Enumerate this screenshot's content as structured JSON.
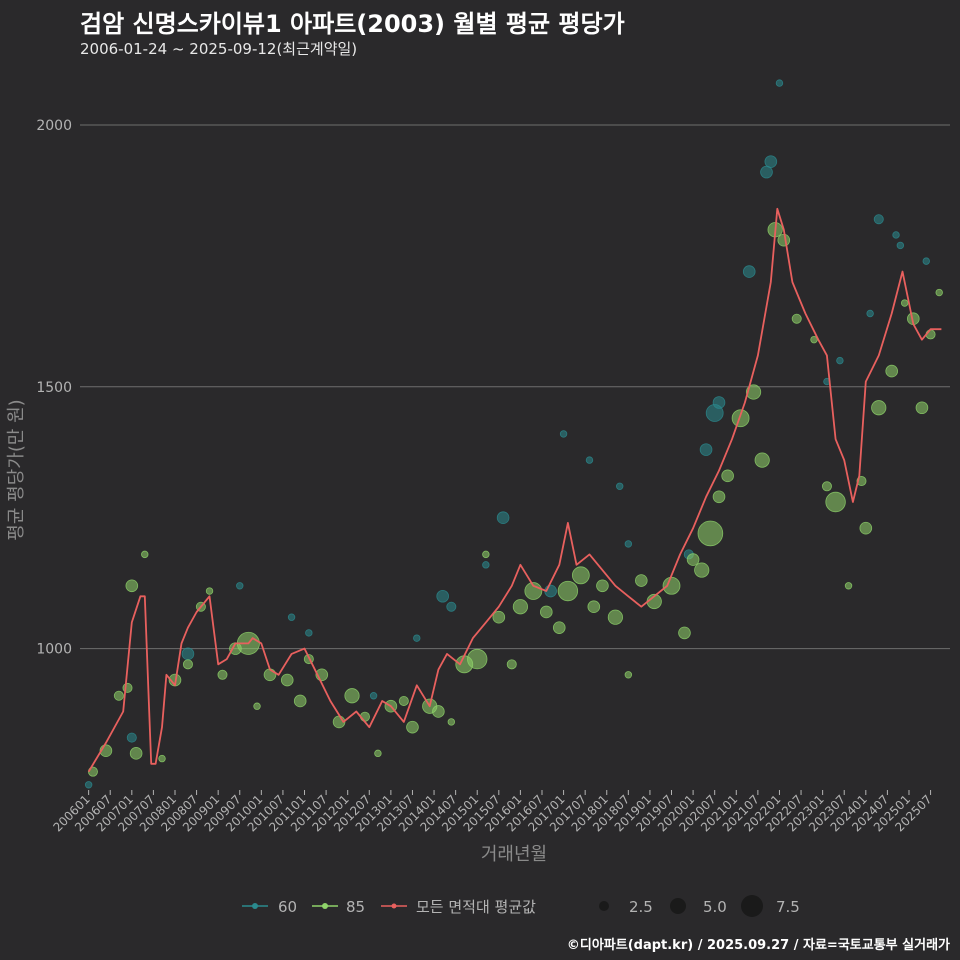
{
  "header": {
    "title": "검암 신명스카이뷰1 아파트(2003) 월별 평균 평당가",
    "subtitle": "2006-01-24 ~ 2025-09-12(최근계약일)"
  },
  "footer": {
    "credit": "©디아파트(dapt.kr) / 2025.09.27 / 자료=국토교통부 실거래가"
  },
  "colors": {
    "background": "#2a292b",
    "grid": "#6e6e6e",
    "series_60": "#2a8a8e",
    "series_85": "#8fd36a",
    "avg_line": "#e8605e"
  },
  "chart_data": {
    "type": "line",
    "title": "검암 신명스카이뷰1 아파트(2003) 월별 평균 평당가",
    "xlabel": "거래년월",
    "ylabel": "평균 평당가(만 원)",
    "ylim": [
      730,
      2105
    ],
    "yticks": [
      1000,
      1500,
      2000
    ],
    "xticks": [
      "200601",
      "200607",
      "200701",
      "200707",
      "200801",
      "200807",
      "200901",
      "200907",
      "201001",
      "201007",
      "201101",
      "201107",
      "201201",
      "201207",
      "201301",
      "201307",
      "201401",
      "201407",
      "201501",
      "201507",
      "201601",
      "201607",
      "201701",
      "201707",
      "201801",
      "201807",
      "201901",
      "201907",
      "202001",
      "202007",
      "202101",
      "202107",
      "202201",
      "202207",
      "202301",
      "202307",
      "202401",
      "202407",
      "202501",
      "202507"
    ],
    "legend": {
      "series": [
        {
          "key": "60",
          "label": "60"
        },
        {
          "key": "85",
          "label": "85"
        },
        {
          "key": "avg",
          "label": "모든 면적대 평균값"
        }
      ],
      "sizes": [
        "2.5",
        "5.0",
        "7.5"
      ]
    },
    "series": [
      {
        "name": "모든 면적대 평균값",
        "style": "line",
        "x": [
          2006.0,
          2006.4,
          2006.8,
          2007.0,
          2007.2,
          2007.3,
          2007.45,
          2007.55,
          2007.7,
          2007.8,
          2008.0,
          2008.15,
          2008.3,
          2008.5,
          2008.8,
          2009.0,
          2009.2,
          2009.4,
          2009.7,
          2009.8,
          2010.0,
          2010.2,
          2010.4,
          2010.7,
          2011.0,
          2011.3,
          2011.6,
          2011.9,
          2012.2,
          2012.5,
          2012.8,
          2013.0,
          2013.3,
          2013.6,
          2013.9,
          2014.1,
          2014.3,
          2014.6,
          2014.9,
          2015.2,
          2015.5,
          2015.8,
          2016.0,
          2016.3,
          2016.6,
          2016.9,
          2017.1,
          2017.3,
          2017.6,
          2017.9,
          2018.2,
          2018.5,
          2018.8,
          2019.1,
          2019.4,
          2019.7,
          2020.0,
          2020.3,
          2020.6,
          2020.9,
          2021.2,
          2021.5,
          2021.8,
          2021.95,
          2022.1,
          2022.3,
          2022.6,
          2022.9,
          2023.1,
          2023.3,
          2023.5,
          2023.7,
          2023.85,
          2024.0,
          2024.3,
          2024.6,
          2024.85,
          2025.1,
          2025.3,
          2025.5,
          2025.75
        ],
        "values": [
          765,
          820,
          880,
          1050,
          1100,
          1100,
          780,
          780,
          850,
          950,
          930,
          1010,
          1040,
          1070,
          1100,
          970,
          980,
          1010,
          1010,
          1020,
          1010,
          960,
          950,
          990,
          1000,
          950,
          900,
          860,
          880,
          850,
          900,
          890,
          860,
          930,
          890,
          960,
          990,
          970,
          1020,
          1050,
          1080,
          1120,
          1160,
          1120,
          1110,
          1160,
          1240,
          1160,
          1180,
          1150,
          1120,
          1100,
          1080,
          1100,
          1120,
          1180,
          1230,
          1290,
          1340,
          1400,
          1470,
          1560,
          1700,
          1840,
          1800,
          1700,
          1640,
          1590,
          1560,
          1400,
          1360,
          1280,
          1330,
          1510,
          1560,
          1640,
          1720,
          1620,
          1590,
          1610,
          1610
        ]
      },
      {
        "name": "85",
        "style": "points",
        "points": [
          [
            2006.1,
            765,
            2
          ],
          [
            2006.4,
            805,
            3
          ],
          [
            2006.7,
            910,
            2
          ],
          [
            2006.9,
            925,
            2
          ],
          [
            2007.0,
            1120,
            3
          ],
          [
            2007.1,
            800,
            3
          ],
          [
            2007.3,
            1180,
            1
          ],
          [
            2007.7,
            790,
            1
          ],
          [
            2008.0,
            940,
            3
          ],
          [
            2008.3,
            970,
            2
          ],
          [
            2008.6,
            1080,
            2
          ],
          [
            2008.8,
            1110,
            1
          ],
          [
            2009.1,
            950,
            2
          ],
          [
            2009.4,
            1000,
            3
          ],
          [
            2009.7,
            1010,
            7
          ],
          [
            2009.9,
            890,
            1
          ],
          [
            2010.2,
            950,
            3
          ],
          [
            2010.6,
            940,
            3
          ],
          [
            2010.9,
            900,
            3
          ],
          [
            2011.1,
            980,
            2
          ],
          [
            2011.4,
            950,
            3
          ],
          [
            2011.8,
            860,
            3
          ],
          [
            2012.1,
            910,
            4
          ],
          [
            2012.4,
            870,
            2
          ],
          [
            2012.7,
            800,
            1
          ],
          [
            2013.0,
            890,
            3
          ],
          [
            2013.3,
            900,
            2
          ],
          [
            2013.5,
            850,
            3
          ],
          [
            2013.9,
            890,
            4
          ],
          [
            2014.1,
            880,
            3
          ],
          [
            2014.4,
            860,
            1
          ],
          [
            2014.7,
            970,
            5
          ],
          [
            2015.0,
            980,
            6
          ],
          [
            2015.2,
            1180,
            1
          ],
          [
            2015.5,
            1060,
            3
          ],
          [
            2015.8,
            970,
            2
          ],
          [
            2016.0,
            1080,
            4
          ],
          [
            2016.3,
            1110,
            5
          ],
          [
            2016.6,
            1070,
            3
          ],
          [
            2016.9,
            1040,
            3
          ],
          [
            2017.1,
            1110,
            6
          ],
          [
            2017.4,
            1140,
            5
          ],
          [
            2017.7,
            1080,
            3
          ],
          [
            2017.9,
            1120,
            3
          ],
          [
            2018.2,
            1060,
            4
          ],
          [
            2018.5,
            950,
            1
          ],
          [
            2018.8,
            1130,
            3
          ],
          [
            2019.1,
            1090,
            4
          ],
          [
            2019.5,
            1120,
            5
          ],
          [
            2019.8,
            1030,
            3
          ],
          [
            2020.0,
            1170,
            3
          ],
          [
            2020.2,
            1150,
            4
          ],
          [
            2020.4,
            1220,
            8
          ],
          [
            2020.6,
            1290,
            3
          ],
          [
            2020.8,
            1330,
            3
          ],
          [
            2021.1,
            1440,
            5
          ],
          [
            2021.4,
            1490,
            4
          ],
          [
            2021.6,
            1360,
            4
          ],
          [
            2021.9,
            1800,
            4
          ],
          [
            2022.1,
            1780,
            3
          ],
          [
            2022.4,
            1630,
            2
          ],
          [
            2022.8,
            1590,
            1
          ],
          [
            2023.1,
            1310,
            2
          ],
          [
            2023.3,
            1280,
            6
          ],
          [
            2023.6,
            1120,
            1
          ],
          [
            2023.9,
            1320,
            2
          ],
          [
            2024.0,
            1230,
            3
          ],
          [
            2024.3,
            1460,
            4
          ],
          [
            2024.6,
            1530,
            3
          ],
          [
            2024.9,
            1660,
            1
          ],
          [
            2025.1,
            1630,
            3
          ],
          [
            2025.3,
            1460,
            3
          ],
          [
            2025.5,
            1600,
            2
          ],
          [
            2025.7,
            1680,
            1
          ]
        ]
      },
      {
        "name": "60",
        "style": "points",
        "points": [
          [
            2006.0,
            740,
            1
          ],
          [
            2007.0,
            830,
            2
          ],
          [
            2008.3,
            990,
            3
          ],
          [
            2009.5,
            1120,
            1
          ],
          [
            2010.7,
            1060,
            1
          ],
          [
            2011.1,
            1030,
            1
          ],
          [
            2012.6,
            910,
            1
          ],
          [
            2013.6,
            1020,
            1
          ],
          [
            2014.2,
            1100,
            3
          ],
          [
            2014.4,
            1080,
            2
          ],
          [
            2015.2,
            1160,
            1
          ],
          [
            2015.6,
            1250,
            3
          ],
          [
            2016.7,
            1110,
            3
          ],
          [
            2017.0,
            1410,
            1
          ],
          [
            2017.6,
            1360,
            1
          ],
          [
            2018.3,
            1310,
            1
          ],
          [
            2018.5,
            1200,
            1
          ],
          [
            2019.9,
            1180,
            2
          ],
          [
            2020.3,
            1380,
            3
          ],
          [
            2020.5,
            1450,
            5
          ],
          [
            2020.6,
            1470,
            3
          ],
          [
            2021.3,
            1720,
            3
          ],
          [
            2021.7,
            1910,
            3
          ],
          [
            2021.8,
            1930,
            3
          ],
          [
            2022.0,
            2080,
            1
          ],
          [
            2023.1,
            1510,
            1
          ],
          [
            2023.4,
            1550,
            1
          ],
          [
            2024.1,
            1640,
            1
          ],
          [
            2024.3,
            1820,
            2
          ],
          [
            2024.7,
            1790,
            1
          ],
          [
            2024.8,
            1770,
            1
          ],
          [
            2025.4,
            1740,
            1
          ]
        ]
      }
    ]
  }
}
